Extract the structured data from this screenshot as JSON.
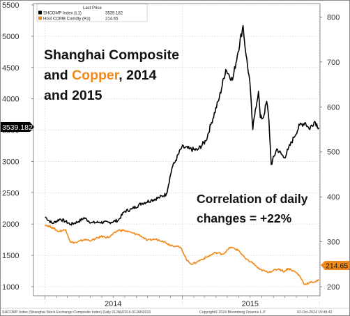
{
  "legend": {
    "header": "Last Price",
    "items": [
      {
        "label": "SHCOMP Index  (L1)",
        "value": "3539.182",
        "color": "#000000"
      },
      {
        "label": "HG3 COMB Comdty  (R1)",
        "value": "214.65",
        "color": "#f08a1c"
      }
    ]
  },
  "annotations": {
    "title_line1": "Shanghai Composite",
    "title_line2_a": "and ",
    "title_line2_b": "Copper",
    "title_line2_c": ", 2014",
    "title_line3": "and 2015",
    "correlation_line1": "Correlation of daily",
    "correlation_line2": "changes = +22%"
  },
  "last_price_tags": {
    "left": "3539.182",
    "right": "214.65"
  },
  "footer": {
    "left": "SHCOMP Index (Shanghai Stock Exchange Composite Index)  Daily 01JAN2014-01JAN2016",
    "center": "Copyright© 2024 Bloomberg Finance L.P.",
    "right": "02-Oct-2024 15:49:42"
  },
  "colors": {
    "shcomp": "#000000",
    "copper": "#f08a1c",
    "grid": "#c8c8c8"
  },
  "chart_data": {
    "type": "line",
    "x_ticks": [
      "2014",
      "2015"
    ],
    "left_axis": {
      "ticks": [
        1000,
        1500,
        2000,
        2500,
        3000,
        3500,
        4000,
        4500,
        5000,
        5500
      ],
      "range": [
        1000,
        5500
      ]
    },
    "right_axis": {
      "ticks": [
        200,
        300,
        400,
        500,
        600,
        700,
        800
      ],
      "range": [
        180,
        830
      ]
    },
    "series": [
      {
        "name": "SHCOMP Index",
        "axis": "left",
        "points": [
          [
            "2014-01-01",
            2115
          ],
          [
            "2014-01-20",
            2010
          ],
          [
            "2014-02-10",
            2080
          ],
          [
            "2014-02-25",
            2040
          ],
          [
            "2014-03-10",
            1995
          ],
          [
            "2014-03-31",
            2040
          ],
          [
            "2014-04-15",
            2100
          ],
          [
            "2014-05-05",
            2020
          ],
          [
            "2014-05-26",
            2030
          ],
          [
            "2014-06-20",
            2025
          ],
          [
            "2014-07-15",
            2060
          ],
          [
            "2014-07-31",
            2200
          ],
          [
            "2014-08-20",
            2240
          ],
          [
            "2014-09-15",
            2330
          ],
          [
            "2014-10-10",
            2380
          ],
          [
            "2014-10-31",
            2420
          ],
          [
            "2014-11-20",
            2480
          ],
          [
            "2014-12-05",
            2900
          ],
          [
            "2014-12-15",
            3020
          ],
          [
            "2014-12-31",
            3230
          ],
          [
            "2015-01-20",
            3200
          ],
          [
            "2015-02-10",
            3180
          ],
          [
            "2015-03-05",
            3330
          ],
          [
            "2015-03-20",
            3620
          ],
          [
            "2015-04-10",
            4020
          ],
          [
            "2015-04-27",
            4470
          ],
          [
            "2015-05-15",
            4300
          ],
          [
            "2015-05-28",
            4700
          ],
          [
            "2015-06-12",
            5170
          ],
          [
            "2015-06-20",
            4700
          ],
          [
            "2015-06-30",
            4280
          ],
          [
            "2015-07-08",
            3510
          ],
          [
            "2015-07-15",
            3830
          ],
          [
            "2015-07-23",
            4120
          ],
          [
            "2015-07-28",
            3700
          ],
          [
            "2015-08-05",
            3700
          ],
          [
            "2015-08-14",
            3960
          ],
          [
            "2015-08-20",
            3660
          ],
          [
            "2015-08-26",
            2950
          ],
          [
            "2015-09-10",
            3200
          ],
          [
            "2015-09-30",
            3060
          ],
          [
            "2015-10-10",
            3190
          ],
          [
            "2015-10-25",
            3380
          ],
          [
            "2015-11-10",
            3580
          ],
          [
            "2015-11-25",
            3620
          ],
          [
            "2015-12-05",
            3520
          ],
          [
            "2015-12-20",
            3640
          ],
          [
            "2015-12-31",
            3539
          ]
        ]
      },
      {
        "name": "HG3 COMB Comdty",
        "axis": "right",
        "points": [
          [
            "2014-01-01",
            338
          ],
          [
            "2014-01-20",
            332
          ],
          [
            "2014-02-05",
            323
          ],
          [
            "2014-02-25",
            327
          ],
          [
            "2014-03-10",
            299
          ],
          [
            "2014-03-25",
            298
          ],
          [
            "2014-04-15",
            305
          ],
          [
            "2014-05-05",
            303
          ],
          [
            "2014-05-30",
            312
          ],
          [
            "2014-06-20",
            310
          ],
          [
            "2014-07-15",
            326
          ],
          [
            "2014-07-31",
            325
          ],
          [
            "2014-08-20",
            320
          ],
          [
            "2014-09-10",
            315
          ],
          [
            "2014-09-30",
            303
          ],
          [
            "2014-10-20",
            306
          ],
          [
            "2014-11-10",
            302
          ],
          [
            "2014-11-30",
            293
          ],
          [
            "2014-12-20",
            290
          ],
          [
            "2014-12-31",
            284
          ],
          [
            "2015-01-14",
            258
          ],
          [
            "2015-01-28",
            250
          ],
          [
            "2015-02-20",
            260
          ],
          [
            "2015-03-10",
            267
          ],
          [
            "2015-03-31",
            276
          ],
          [
            "2015-04-20",
            273
          ],
          [
            "2015-05-10",
            288
          ],
          [
            "2015-05-31",
            281
          ],
          [
            "2015-06-20",
            261
          ],
          [
            "2015-07-08",
            253
          ],
          [
            "2015-07-25",
            239
          ],
          [
            "2015-08-15",
            233
          ],
          [
            "2015-08-30",
            235
          ],
          [
            "2015-09-15",
            240
          ],
          [
            "2015-09-30",
            234
          ],
          [
            "2015-10-10",
            241
          ],
          [
            "2015-10-31",
            232
          ],
          [
            "2015-11-10",
            224
          ],
          [
            "2015-11-23",
            205
          ],
          [
            "2015-12-05",
            209
          ],
          [
            "2015-12-20",
            211
          ],
          [
            "2015-12-31",
            214.65
          ]
        ]
      }
    ],
    "grid": true,
    "legend_position": "top-left"
  }
}
